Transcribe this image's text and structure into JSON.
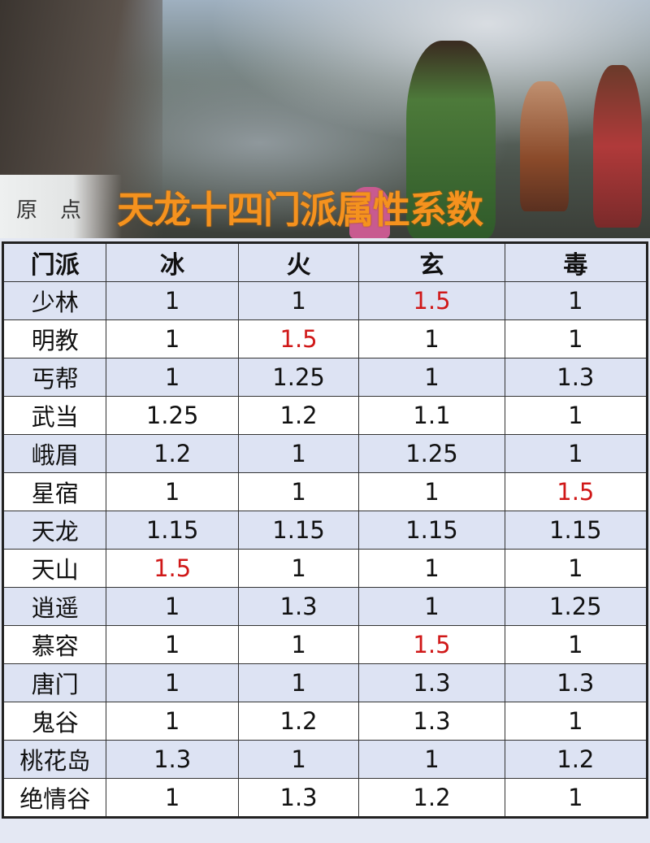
{
  "title": "天龙十四门派属性系数",
  "logo_text": "原点",
  "colors": {
    "highlight": "#d01818",
    "title": "#f5921e",
    "row_alt": "#dde3f3"
  },
  "table": {
    "headers": [
      "门派",
      "冰",
      "火",
      "玄",
      "毒"
    ],
    "rows": [
      {
        "name": "少林",
        "values": [
          "1",
          "1",
          "1.5",
          "1"
        ],
        "highlight": [
          2
        ]
      },
      {
        "name": "明教",
        "values": [
          "1",
          "1.5",
          "1",
          "1"
        ],
        "highlight": [
          1
        ]
      },
      {
        "name": "丐帮",
        "values": [
          "1",
          "1.25",
          "1",
          "1.3"
        ],
        "highlight": []
      },
      {
        "name": "武当",
        "values": [
          "1.25",
          "1.2",
          "1.1",
          "1"
        ],
        "highlight": []
      },
      {
        "name": "峨眉",
        "values": [
          "1.2",
          "1",
          "1.25",
          "1"
        ],
        "highlight": []
      },
      {
        "name": "星宿",
        "values": [
          "1",
          "1",
          "1",
          "1.5"
        ],
        "highlight": [
          3
        ]
      },
      {
        "name": "天龙",
        "values": [
          "1.15",
          "1.15",
          "1.15",
          "1.15"
        ],
        "highlight": []
      },
      {
        "name": "天山",
        "values": [
          "1.5",
          "1",
          "1",
          "1"
        ],
        "highlight": [
          0
        ]
      },
      {
        "name": "逍遥",
        "values": [
          "1",
          "1.3",
          "1",
          "1.25"
        ],
        "highlight": []
      },
      {
        "name": "慕容",
        "values": [
          "1",
          "1",
          "1.5",
          "1"
        ],
        "highlight": [
          2
        ]
      },
      {
        "name": "唐门",
        "values": [
          "1",
          "1",
          "1.3",
          "1.3"
        ],
        "highlight": []
      },
      {
        "name": "鬼谷",
        "values": [
          "1",
          "1.2",
          "1.3",
          "1"
        ],
        "highlight": []
      },
      {
        "name": "桃花岛",
        "values": [
          "1.3",
          "1",
          "1",
          "1.2"
        ],
        "highlight": []
      },
      {
        "name": "绝情谷",
        "values": [
          "1",
          "1.3",
          "1.2",
          "1"
        ],
        "highlight": []
      }
    ]
  }
}
